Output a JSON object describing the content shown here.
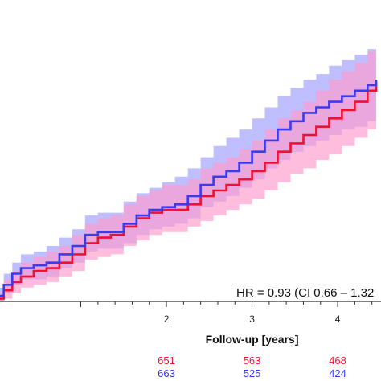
{
  "chart_data": {
    "type": "line",
    "subtype": "kaplan-meier cumulative incidence (step)",
    "xlabel": "Follow-up [years]",
    "xlim": [
      0.0,
      4.45
    ],
    "ylim": [
      0.0,
      1.0
    ],
    "xticks": [
      2,
      3,
      4
    ],
    "xtick_labels": [
      "2",
      "3",
      "4"
    ],
    "annotation": "HR = 0.93 (CI 0.66 – 1.32",
    "grid": false,
    "legend": "none",
    "series": [
      {
        "color": "#3a3aee",
        "ci_color": "#aaaaff",
        "x": [
          0.0,
          0.1,
          0.2,
          0.3,
          0.45,
          0.6,
          0.75,
          0.9,
          1.05,
          1.2,
          1.35,
          1.5,
          1.65,
          1.8,
          1.95,
          2.1,
          2.25,
          2.4,
          2.55,
          2.7,
          2.85,
          3.0,
          3.15,
          3.3,
          3.45,
          3.6,
          3.75,
          3.9,
          4.05,
          4.2,
          4.35,
          4.45
        ],
        "y": [
          0.02,
          0.06,
          0.1,
          0.12,
          0.13,
          0.14,
          0.17,
          0.2,
          0.24,
          0.25,
          0.25,
          0.28,
          0.31,
          0.33,
          0.34,
          0.35,
          0.38,
          0.42,
          0.45,
          0.47,
          0.5,
          0.54,
          0.58,
          0.62,
          0.65,
          0.68,
          0.7,
          0.72,
          0.74,
          0.76,
          0.78,
          0.8
        ],
        "ci_lower": [
          0.0,
          0.03,
          0.06,
          0.08,
          0.08,
          0.09,
          0.12,
          0.14,
          0.18,
          0.19,
          0.19,
          0.21,
          0.24,
          0.26,
          0.27,
          0.28,
          0.3,
          0.34,
          0.36,
          0.38,
          0.41,
          0.44,
          0.48,
          0.51,
          0.54,
          0.56,
          0.58,
          0.6,
          0.62,
          0.63,
          0.65,
          0.67
        ],
        "ci_upper": [
          0.05,
          0.1,
          0.14,
          0.17,
          0.18,
          0.2,
          0.23,
          0.26,
          0.31,
          0.32,
          0.32,
          0.36,
          0.39,
          0.41,
          0.43,
          0.45,
          0.48,
          0.52,
          0.56,
          0.59,
          0.62,
          0.66,
          0.7,
          0.74,
          0.77,
          0.8,
          0.82,
          0.85,
          0.87,
          0.89,
          0.91,
          0.93
        ],
        "at_risk": [
          663,
          525,
          424
        ]
      },
      {
        "color": "#ee1133",
        "ci_color": "#ff99cc",
        "x": [
          0.0,
          0.1,
          0.2,
          0.3,
          0.45,
          0.6,
          0.75,
          0.9,
          1.05,
          1.2,
          1.35,
          1.5,
          1.65,
          1.8,
          1.95,
          2.1,
          2.25,
          2.4,
          2.55,
          2.7,
          2.85,
          3.0,
          3.15,
          3.3,
          3.45,
          3.6,
          3.75,
          3.9,
          4.05,
          4.2,
          4.35,
          4.45
        ],
        "y": [
          0.01,
          0.04,
          0.07,
          0.09,
          0.11,
          0.12,
          0.14,
          0.17,
          0.21,
          0.23,
          0.24,
          0.27,
          0.3,
          0.32,
          0.33,
          0.33,
          0.35,
          0.38,
          0.4,
          0.42,
          0.44,
          0.47,
          0.5,
          0.54,
          0.57,
          0.6,
          0.63,
          0.66,
          0.69,
          0.72,
          0.76,
          0.79
        ],
        "ci_lower": [
          0.0,
          0.01,
          0.03,
          0.05,
          0.06,
          0.07,
          0.09,
          0.11,
          0.15,
          0.16,
          0.17,
          0.2,
          0.22,
          0.24,
          0.25,
          0.25,
          0.27,
          0.29,
          0.31,
          0.33,
          0.35,
          0.37,
          0.4,
          0.43,
          0.46,
          0.48,
          0.51,
          0.53,
          0.56,
          0.59,
          0.62,
          0.65
        ],
        "ci_upper": [
          0.03,
          0.08,
          0.11,
          0.14,
          0.16,
          0.18,
          0.2,
          0.24,
          0.28,
          0.3,
          0.31,
          0.35,
          0.38,
          0.4,
          0.42,
          0.42,
          0.44,
          0.48,
          0.5,
          0.52,
          0.55,
          0.58,
          0.62,
          0.66,
          0.69,
          0.72,
          0.76,
          0.8,
          0.83,
          0.86,
          0.9,
          0.93
        ],
        "at_risk": [
          651,
          563,
          468
        ]
      }
    ]
  }
}
